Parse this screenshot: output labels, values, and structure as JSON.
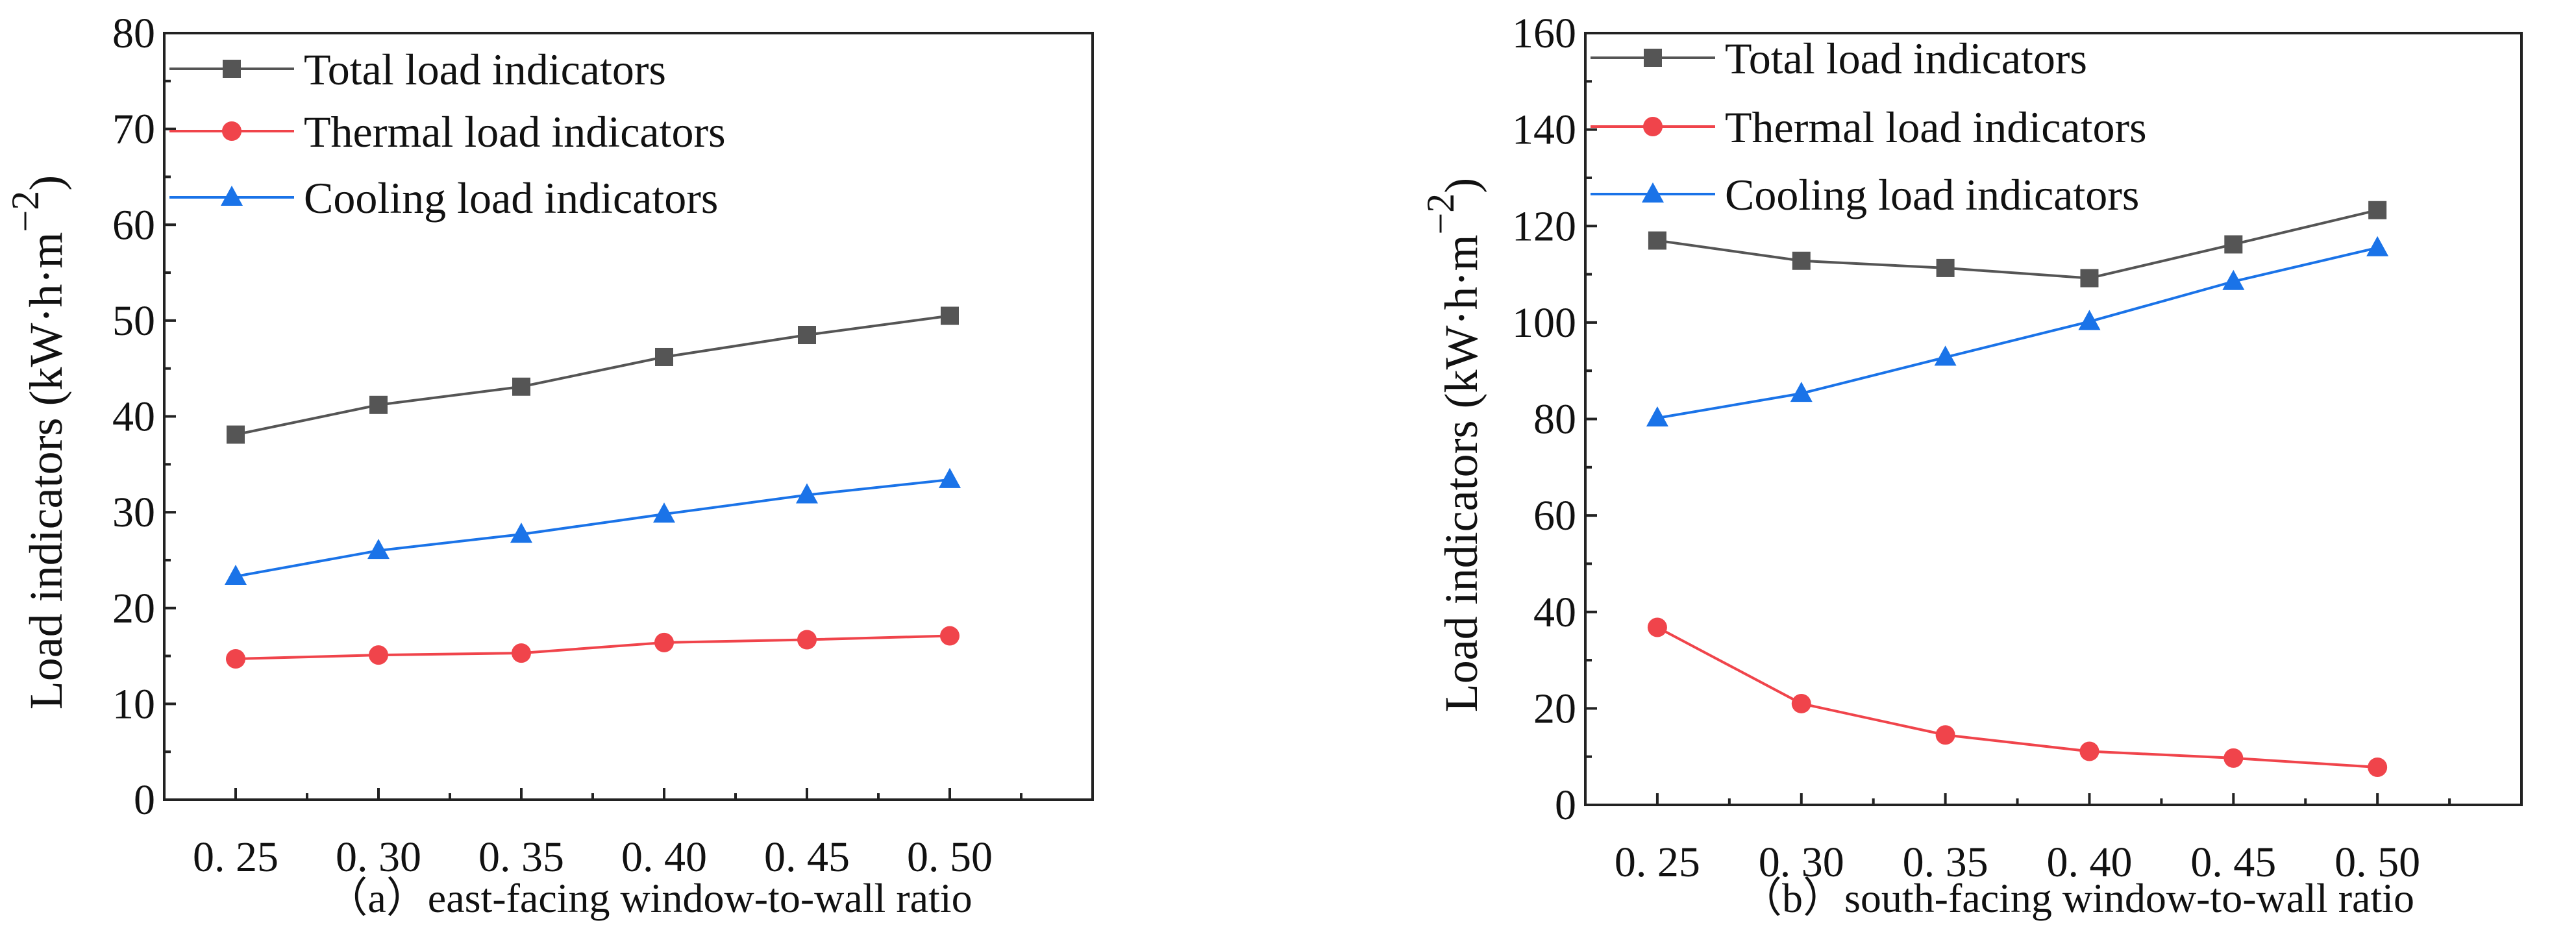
{
  "chart_data": [
    {
      "type": "line",
      "title": "（a）east-facing window-to-wall ratio",
      "xlabel": "（a）east-facing window-to-wall ratio",
      "ylabel": "Load indicators (kW·h·m",
      "ylabel_sup": "−2",
      "ylabel_close": ")",
      "categories": [
        "0. 25",
        "0. 30",
        "0. 35",
        "0. 40",
        "0. 45",
        "0. 50"
      ],
      "ylim": [
        0,
        80
      ],
      "yticks": [
        0,
        10,
        20,
        30,
        40,
        50,
        60,
        70,
        80
      ],
      "legend_position": "top-left",
      "series": [
        {
          "name": "Total load indicators",
          "color": "#555555",
          "marker": "square",
          "values": [
            38.1,
            41.2,
            43.1,
            46.2,
            48.5,
            50.5
          ]
        },
        {
          "name": "Thermal load indicators",
          "color": "#f0444b",
          "marker": "circle",
          "values": [
            14.7,
            15.1,
            15.3,
            16.4,
            16.7,
            17.1
          ]
        },
        {
          "name": "Cooling load indicators",
          "color": "#1a73e8",
          "marker": "triangle",
          "values": [
            23.3,
            26.0,
            27.7,
            29.8,
            31.8,
            33.4
          ]
        }
      ]
    },
    {
      "type": "line",
      "title": "（b）south-facing window-to-wall ratio",
      "xlabel": "（b）south-facing window-to-wall ratio",
      "ylabel": "Load indicators (kW·h·m",
      "ylabel_sup": "−2",
      "ylabel_close": ")",
      "categories": [
        "0. 25",
        "0. 30",
        "0. 35",
        "0. 40",
        "0. 45",
        "0. 50"
      ],
      "ylim": [
        0,
        160
      ],
      "yticks": [
        0,
        20,
        40,
        60,
        80,
        100,
        120,
        140,
        160
      ],
      "legend_position": "top-left",
      "series": [
        {
          "name": "Total load indicators",
          "color": "#555555",
          "marker": "square",
          "values": [
            117.0,
            112.8,
            111.3,
            109.2,
            116.2,
            123.3
          ]
        },
        {
          "name": "Thermal load indicators",
          "color": "#f0444b",
          "marker": "circle",
          "values": [
            36.8,
            21.0,
            14.5,
            11.1,
            9.7,
            7.8
          ]
        },
        {
          "name": "Cooling load indicators",
          "color": "#1a73e8",
          "marker": "triangle",
          "values": [
            80.2,
            85.3,
            92.8,
            100.2,
            108.5,
            115.5
          ]
        }
      ]
    }
  ]
}
